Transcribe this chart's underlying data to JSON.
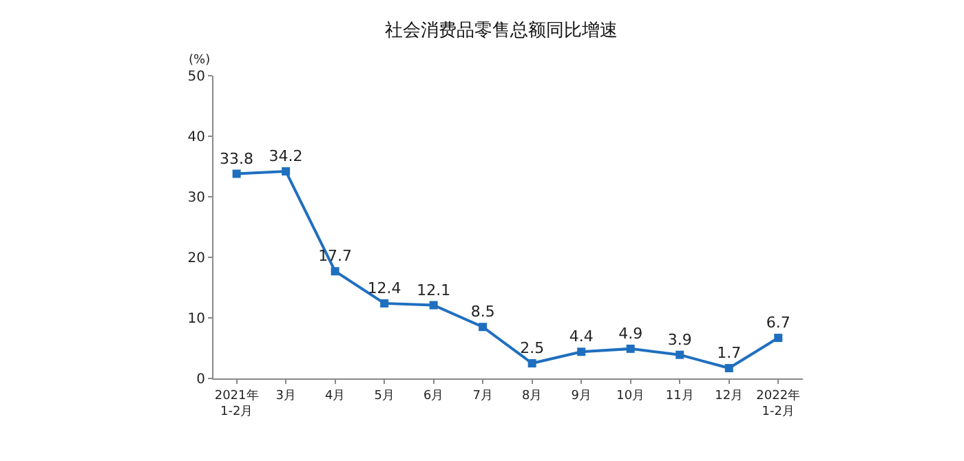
{
  "chart_data": {
    "type": "line",
    "title": "社会消费品零售总额同比增速",
    "ylabel": "(%)",
    "categories": [
      "2021年\n1-2月",
      "3月",
      "4月",
      "5月",
      "6月",
      "7月",
      "8月",
      "9月",
      "10月",
      "11月",
      "12月",
      "2022年\n1-2月"
    ],
    "series": [
      {
        "color": "#1f6fbf",
        "values": [
          33.8,
          34.2,
          17.7,
          12.4,
          12.1,
          8.5,
          2.5,
          4.4,
          4.9,
          3.9,
          1.7,
          6.7
        ]
      }
    ],
    "ylim": [
      0,
      50
    ],
    "yticks": [
      0,
      10,
      20,
      30,
      40,
      50
    ],
    "grid": false,
    "legend": false,
    "marker": "square",
    "line_style": "solid",
    "data_labels": true
  }
}
